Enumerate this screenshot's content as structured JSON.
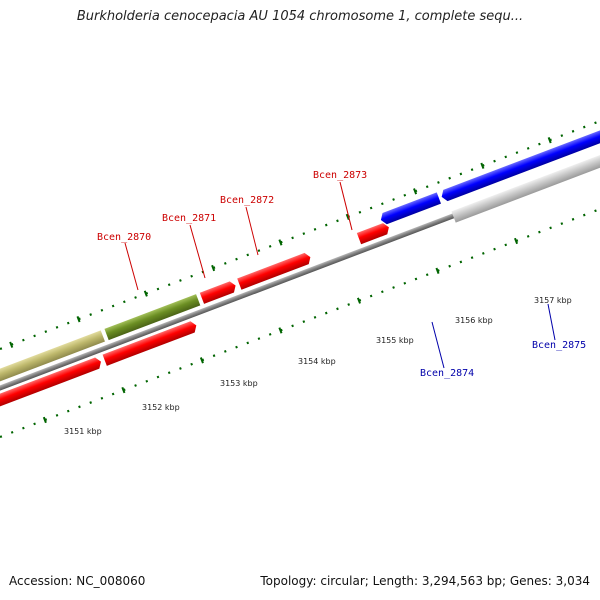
{
  "title": "Burkholderia cenocepacia AU 1054 chromosome 1, complete sequ...",
  "footer": {
    "accession": "Accession: NC_008060",
    "summary": "Topology: circular; Length: 3,294,563 bp; Genes: 3,034"
  },
  "colors": {
    "forward_gene": "#ff0000",
    "reverse_gene": "#0000ff",
    "olive_feature": "#6b8e23",
    "khaki_feature": "#bdb76b",
    "grey_feature": "#c0c0c0",
    "backbone": "#808080",
    "ticks": "#006400",
    "forward_label": "#cc0000",
    "reverse_label": "#0000aa"
  },
  "kbp_ticks": [
    "3151 kbp",
    "3152 kbp",
    "3153 kbp",
    "3154 kbp",
    "3155 kbp",
    "3156 kbp",
    "3157 kbp"
  ],
  "gene_labels": [
    {
      "name": "Bcen_2870",
      "strand": "forward"
    },
    {
      "name": "Bcen_2871",
      "strand": "forward"
    },
    {
      "name": "Bcen_2872",
      "strand": "forward"
    },
    {
      "name": "Bcen_2873",
      "strand": "forward"
    },
    {
      "name": "Bcen_2874",
      "strand": "reverse"
    },
    {
      "name": "Bcen_2875",
      "strand": "reverse"
    }
  ]
}
